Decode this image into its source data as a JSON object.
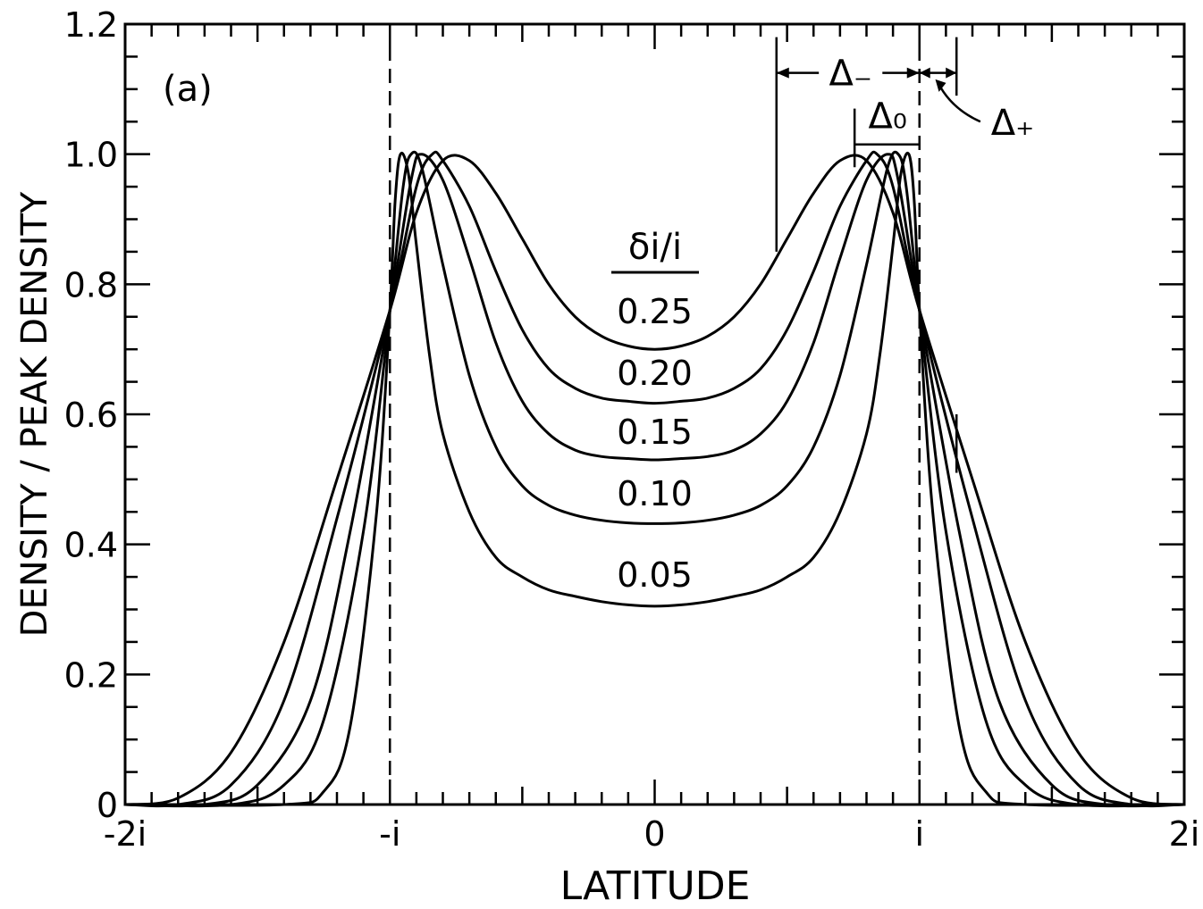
{
  "chart_data": {
    "type": "line",
    "panel_label": "(a)",
    "xlabel": "LATITUDE",
    "ylabel": "DENSITY / PEAK DENSITY",
    "xlim": [
      -2,
      2
    ],
    "ylim": [
      0,
      1.2
    ],
    "x_ticks": [
      {
        "value": -2,
        "label": "-2i"
      },
      {
        "value": -1,
        "label": "-i"
      },
      {
        "value": 0,
        "label": "0"
      },
      {
        "value": 1,
        "label": "i"
      },
      {
        "value": 2,
        "label": "2i"
      }
    ],
    "y_ticks": [
      {
        "value": 0,
        "label": "0"
      },
      {
        "value": 0.2,
        "label": "0.2"
      },
      {
        "value": 0.4,
        "label": "0.4"
      },
      {
        "value": 0.6,
        "label": "0.6"
      },
      {
        "value": 0.8,
        "label": "0.8"
      },
      {
        "value": 1.0,
        "label": "1.0"
      },
      {
        "value": 1.2,
        "label": "1.2"
      }
    ],
    "legend_title": "δi/i",
    "series": [
      {
        "name": "0.25",
        "x": [
          -2.0,
          -1.8,
          -1.6,
          -1.4,
          -1.2,
          -1.0,
          -0.9,
          -0.8,
          -0.7,
          -0.6,
          -0.5,
          -0.4,
          -0.3,
          -0.2,
          -0.1,
          0.0,
          0.1,
          0.2,
          0.3,
          0.4,
          0.5,
          0.6,
          0.7,
          0.8,
          0.9,
          1.0,
          1.2,
          1.4,
          1.6,
          1.8,
          2.0
        ],
        "y": [
          0.0,
          0.01,
          0.08,
          0.25,
          0.5,
          0.76,
          0.91,
          0.99,
          0.99,
          0.94,
          0.87,
          0.8,
          0.75,
          0.72,
          0.705,
          0.7,
          0.705,
          0.72,
          0.75,
          0.8,
          0.87,
          0.94,
          0.99,
          0.99,
          0.91,
          0.76,
          0.5,
          0.25,
          0.08,
          0.01,
          0.0
        ]
      },
      {
        "name": "0.20",
        "x": [
          -2.0,
          -1.8,
          -1.6,
          -1.4,
          -1.2,
          -1.0,
          -0.9,
          -0.84,
          -0.8,
          -0.7,
          -0.6,
          -0.5,
          -0.4,
          -0.3,
          -0.2,
          -0.1,
          0.0,
          0.1,
          0.2,
          0.3,
          0.4,
          0.5,
          0.6,
          0.7,
          0.8,
          0.84,
          0.9,
          1.0,
          1.2,
          1.4,
          1.6,
          1.8,
          2.0
        ],
        "y": [
          0.0,
          0.0,
          0.03,
          0.16,
          0.44,
          0.76,
          0.95,
          1.0,
          0.99,
          0.92,
          0.82,
          0.73,
          0.67,
          0.64,
          0.625,
          0.62,
          0.617,
          0.62,
          0.625,
          0.64,
          0.67,
          0.73,
          0.82,
          0.92,
          0.99,
          1.0,
          0.95,
          0.76,
          0.44,
          0.16,
          0.03,
          0.0,
          0.0
        ]
      },
      {
        "name": "0.15",
        "x": [
          -2.0,
          -1.7,
          -1.5,
          -1.3,
          -1.15,
          -1.0,
          -0.92,
          -0.88,
          -0.8,
          -0.7,
          -0.6,
          -0.5,
          -0.4,
          -0.3,
          -0.2,
          -0.1,
          0.0,
          0.1,
          0.2,
          0.3,
          0.4,
          0.5,
          0.6,
          0.7,
          0.8,
          0.88,
          0.92,
          1.0,
          1.15,
          1.3,
          1.5,
          1.7,
          2.0
        ],
        "y": [
          0.0,
          0.0,
          0.03,
          0.16,
          0.42,
          0.76,
          0.96,
          1.0,
          0.96,
          0.84,
          0.71,
          0.62,
          0.57,
          0.545,
          0.535,
          0.532,
          0.53,
          0.532,
          0.535,
          0.545,
          0.57,
          0.62,
          0.71,
          0.84,
          0.96,
          1.0,
          0.96,
          0.76,
          0.42,
          0.16,
          0.03,
          0.0,
          0.0
        ]
      },
      {
        "name": "0.10",
        "x": [
          -2.0,
          -1.6,
          -1.4,
          -1.25,
          -1.1,
          -1.0,
          -0.95,
          -0.92,
          -0.88,
          -0.8,
          -0.7,
          -0.6,
          -0.5,
          -0.4,
          -0.3,
          -0.2,
          -0.1,
          0.0,
          0.1,
          0.2,
          0.3,
          0.4,
          0.5,
          0.6,
          0.7,
          0.8,
          0.88,
          0.92,
          0.95,
          1.0,
          1.1,
          1.25,
          1.4,
          1.6,
          2.0
        ],
        "y": [
          0.0,
          0.0,
          0.03,
          0.13,
          0.42,
          0.76,
          0.95,
          1.0,
          0.98,
          0.83,
          0.66,
          0.55,
          0.49,
          0.46,
          0.445,
          0.437,
          0.433,
          0.432,
          0.433,
          0.437,
          0.445,
          0.46,
          0.49,
          0.55,
          0.66,
          0.83,
          0.98,
          1.0,
          0.95,
          0.76,
          0.42,
          0.13,
          0.03,
          0.0,
          0.0
        ]
      },
      {
        "name": "0.05",
        "x": [
          -2.0,
          -1.4,
          -1.25,
          -1.15,
          -1.05,
          -1.0,
          -0.98,
          -0.96,
          -0.93,
          -0.9,
          -0.85,
          -0.8,
          -0.7,
          -0.6,
          -0.5,
          -0.4,
          -0.3,
          -0.2,
          -0.1,
          0.0,
          0.1,
          0.2,
          0.3,
          0.4,
          0.5,
          0.6,
          0.7,
          0.8,
          0.85,
          0.9,
          0.93,
          0.96,
          0.98,
          1.0,
          1.05,
          1.15,
          1.25,
          1.4,
          2.0
        ],
        "y": [
          0.0,
          0.0,
          0.02,
          0.12,
          0.45,
          0.76,
          0.93,
          1.0,
          0.97,
          0.86,
          0.69,
          0.57,
          0.45,
          0.38,
          0.35,
          0.33,
          0.32,
          0.312,
          0.307,
          0.305,
          0.307,
          0.312,
          0.32,
          0.33,
          0.35,
          0.38,
          0.45,
          0.57,
          0.69,
          0.86,
          0.97,
          1.0,
          0.93,
          0.76,
          0.45,
          0.12,
          0.02,
          0.0,
          0.0
        ]
      }
    ],
    "series_labels": [
      {
        "text": "0.25",
        "x": 0.0,
        "y": 0.74
      },
      {
        "text": "0.20",
        "x": 0.0,
        "y": 0.645
      },
      {
        "text": "0.15",
        "x": 0.0,
        "y": 0.555
      },
      {
        "text": "0.10",
        "x": 0.0,
        "y": 0.46
      },
      {
        "text": "0.05",
        "x": 0.0,
        "y": 0.335
      }
    ],
    "reference_lines_x": [
      -1,
      1
    ],
    "annotations": {
      "delta_minus": "Δ₋",
      "delta_zero": "Δ₀",
      "delta_plus": "Δ₊"
    },
    "grid": false,
    "line_color": "#000000"
  }
}
